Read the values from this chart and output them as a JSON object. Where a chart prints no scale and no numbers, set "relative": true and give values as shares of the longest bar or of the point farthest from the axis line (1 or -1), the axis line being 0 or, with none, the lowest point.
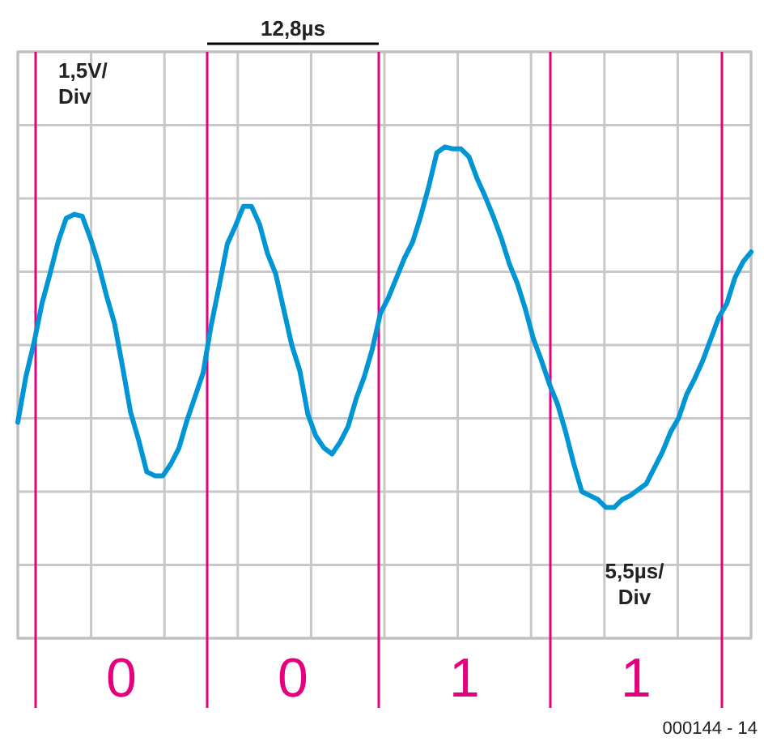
{
  "chart_data": {
    "type": "line",
    "relative": true,
    "categories": [
      null,
      null,
      null,
      null,
      null,
      null,
      null,
      null,
      null,
      null,
      null,
      null,
      null,
      null,
      null,
      null,
      null,
      null,
      null,
      null,
      null,
      null,
      null,
      null,
      null,
      null,
      null,
      null,
      null,
      null,
      null,
      null,
      null,
      null,
      null,
      null,
      null,
      null,
      null,
      null,
      null,
      null,
      null,
      null,
      null,
      null,
      null,
      null,
      null,
      null,
      null,
      null,
      null,
      null,
      null,
      null,
      null,
      null,
      null,
      null,
      null,
      null,
      null,
      null,
      null,
      null,
      null,
      null,
      null,
      null,
      null,
      null,
      null,
      null,
      null,
      null,
      null,
      null,
      null,
      null,
      null,
      null,
      null,
      null,
      null,
      null,
      null,
      null,
      null,
      null,
      null,
      null
    ],
    "series": [
      {
        "color": "#0096d6",
        "values": [
          -0.39,
          -0.16,
          0.01,
          0.21,
          0.36,
          0.52,
          0.64,
          0.66,
          0.65,
          0.54,
          0.41,
          0.25,
          0.11,
          -0.11,
          -0.34,
          -0.48,
          -0.64,
          -0.66,
          -0.66,
          -0.6,
          -0.52,
          -0.38,
          -0.26,
          -0.14,
          0.1,
          0.3,
          0.51,
          0.6,
          0.7,
          0.7,
          0.61,
          0.46,
          0.36,
          0.18,
          0.0,
          -0.13,
          -0.35,
          -0.46,
          -0.52,
          -0.55,
          -0.49,
          -0.41,
          -0.27,
          -0.16,
          -0.02,
          0.16,
          0.24,
          0.34,
          0.44,
          0.52,
          0.65,
          0.8,
          0.97,
          1.0,
          0.99,
          0.99,
          0.95,
          0.84,
          0.75,
          0.65,
          0.54,
          0.41,
          0.31,
          0.18,
          0.03,
          -0.08,
          -0.2,
          -0.3,
          -0.44,
          -0.6,
          -0.74,
          -0.76,
          -0.78,
          -0.82,
          -0.82,
          -0.78,
          -0.76,
          -0.73,
          -0.7,
          -0.62,
          -0.54,
          -0.44,
          -0.37,
          -0.25,
          -0.17,
          -0.08,
          0.03,
          0.14,
          0.21,
          0.34,
          0.42,
          0.47
        ]
      }
    ],
    "grid": true,
    "ref_lines": [
      {
        "axis": "x",
        "color": "#e6007e"
      },
      {
        "axis": "x",
        "color": "#e6007e"
      },
      {
        "axis": "x",
        "color": "#e6007e"
      },
      {
        "axis": "x",
        "color": "#e6007e"
      },
      {
        "axis": "x",
        "color": "#e6007e"
      }
    ],
    "annotations": [
      "12,8µs",
      "1,5V/\nDiv",
      "5,5µs/\nDiv",
      "000144 - 14",
      "0",
      "0",
      "1",
      "1"
    ]
  }
}
